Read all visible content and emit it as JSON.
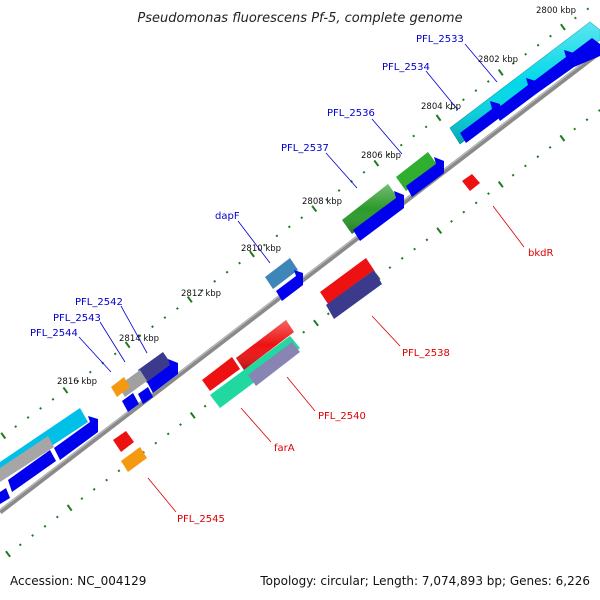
{
  "title": "Pseudomonas fluorescens Pf-5, complete genome",
  "footer": {
    "accession": "Accession: NC_004129",
    "summary": "Topology: circular; Length: 7,074,893 bp; Genes: 6,226"
  },
  "colors": {
    "backbone": "#8a8a8a",
    "tick": "#1e7a1e",
    "cds": "#0000ee",
    "label_forward": "#0000cc",
    "label_reverse": "#dd0000"
  },
  "ticks": [
    {
      "label": "2800 kbp"
    },
    {
      "label": "2802 kbp"
    },
    {
      "label": "2804 kbp"
    },
    {
      "label": "2806 kbp"
    },
    {
      "label": "2808 kbp"
    },
    {
      "label": "2810 kbp"
    },
    {
      "label": "2812 kbp"
    },
    {
      "label": "2814 kbp"
    },
    {
      "label": "2816 kbp"
    }
  ],
  "genes_forward": [
    {
      "name": "PFL_2533",
      "color": "#00d8e8"
    },
    {
      "name": "PFL_2534",
      "color": "#00d8e8"
    },
    {
      "name": "PFL_2536",
      "color": "#2fae2f"
    },
    {
      "name": "PFL_2537",
      "color": "#2a9a2a"
    },
    {
      "name": "dapF",
      "color": "#3e86b8"
    },
    {
      "name": "PFL_2542",
      "color": "#3c3a8c"
    },
    {
      "name": "PFL_2543",
      "color": "#a0a0a0"
    },
    {
      "name": "PFL_2544",
      "color": "#f59a10"
    }
  ],
  "genes_reverse": [
    {
      "name": "bkdR",
      "color": "#ee1111"
    },
    {
      "name": "PFL_2538",
      "color": "#3c3a8c"
    },
    {
      "name": "PFL_2540",
      "color": "#ee1111"
    },
    {
      "name": "farA",
      "color": "#ee1111"
    },
    {
      "name": "PFL_2545",
      "color": "#f59a10"
    }
  ]
}
